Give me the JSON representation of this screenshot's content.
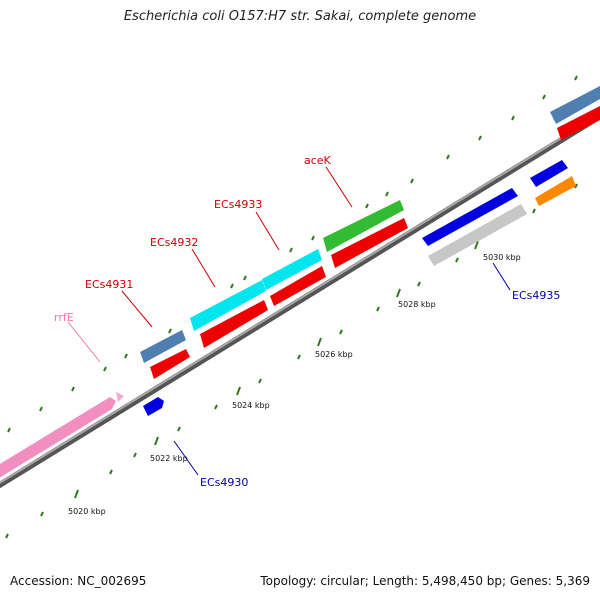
{
  "title": "Escherichia coli O157:H7 str. Sakai, complete genome",
  "footer": {
    "accession": "Accession: NC_002695",
    "topology": "Topology: circular; Length: 5,498,450 bp; Genes: 5,369"
  },
  "colors": {
    "backbone": "#8a8a8a",
    "tick": "#2a7a1a",
    "label_forward": "#cc0000",
    "label_reverse": "#0000aa",
    "label_rna": "#ee77aa"
  },
  "kbp_labels": [
    "5020 kbp",
    "5022 kbp",
    "5024 kbp",
    "5026 kbp",
    "5028 kbp",
    "5030 kbp"
  ],
  "features": [
    {
      "name": "rrfE",
      "strand": "forward",
      "color": "#f08fc0"
    },
    {
      "name": "ECs4930",
      "strand": "reverse",
      "color": "#0000e0"
    },
    {
      "name": "ECs4931",
      "strand": "forward",
      "color": "#4f7fb0"
    },
    {
      "name": "ECs4932",
      "strand": "forward",
      "color": "#00e8ee"
    },
    {
      "name": "ECs4933",
      "strand": "forward",
      "color": "#00e8ee"
    },
    {
      "name": "aceK",
      "strand": "forward",
      "color": "#33bb33"
    },
    {
      "name": "ECs4935",
      "strand": "reverse",
      "color": "#0000e0"
    }
  ]
}
